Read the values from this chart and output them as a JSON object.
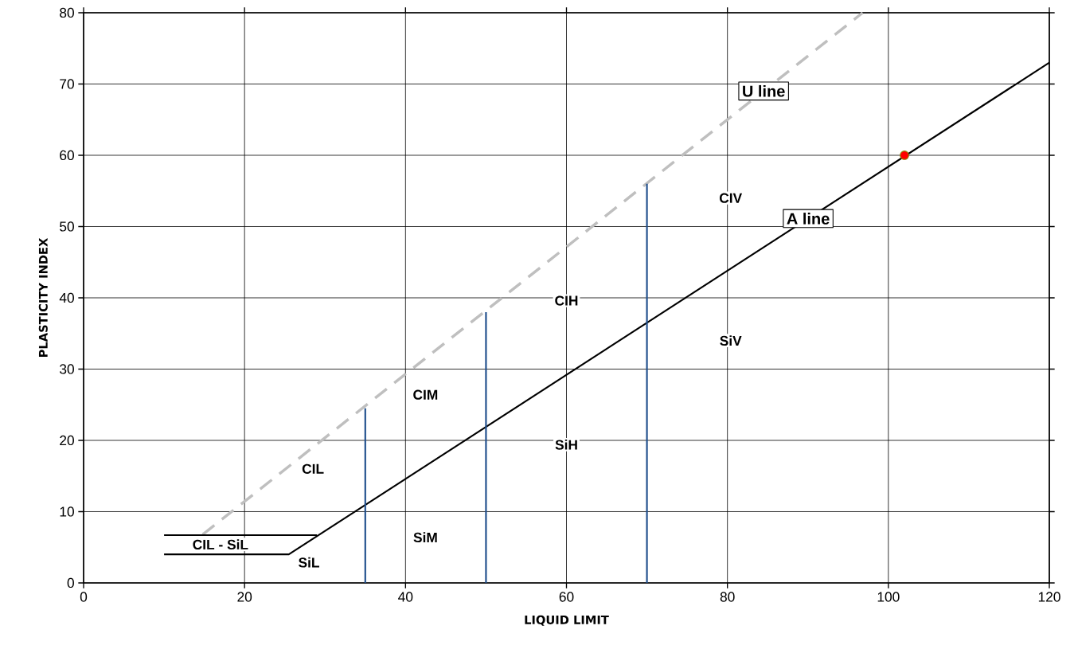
{
  "chart_data": {
    "type": "line",
    "xlabel": "LIQUID LIMIT",
    "ylabel": "PLASTICITY INDEX",
    "xlim": [
      0,
      120
    ],
    "ylim": [
      0,
      80
    ],
    "xticks": [
      0,
      20,
      40,
      60,
      80,
      100,
      120
    ],
    "yticks": [
      0,
      10,
      20,
      30,
      40,
      50,
      60,
      70,
      80
    ],
    "grid": true,
    "series": [
      {
        "name": "U line",
        "color": "#bfbfbf",
        "line_style": "dashed",
        "x": [
          14.8,
          96.8
        ],
        "values": [
          6.8,
          80
        ]
      },
      {
        "name": "A line",
        "color": "#000000",
        "x": [
          10,
          25.5,
          120
        ],
        "values": [
          4,
          4,
          73
        ]
      },
      {
        "color": "#000000",
        "x": [
          10,
          29
        ],
        "values": [
          6.7,
          6.7
        ]
      },
      {
        "color": "#1f4e8c",
        "x": [
          35,
          35
        ],
        "values": [
          0,
          24.5
        ]
      },
      {
        "color": "#1f4e8c",
        "x": [
          50,
          50
        ],
        "values": [
          0,
          38
        ]
      },
      {
        "color": "#1f4e8c",
        "x": [
          70,
          70
        ],
        "values": [
          0,
          56
        ]
      },
      {
        "type": "scatter",
        "marker": "circle",
        "color": "#ff0000",
        "x": [
          102
        ],
        "values": [
          60
        ]
      }
    ],
    "annotations": [
      "CIL",
      "CIL - SiL",
      "SiL",
      "SiM",
      "CIM",
      "CIH",
      "SiH",
      "CIV",
      "SiV"
    ]
  }
}
